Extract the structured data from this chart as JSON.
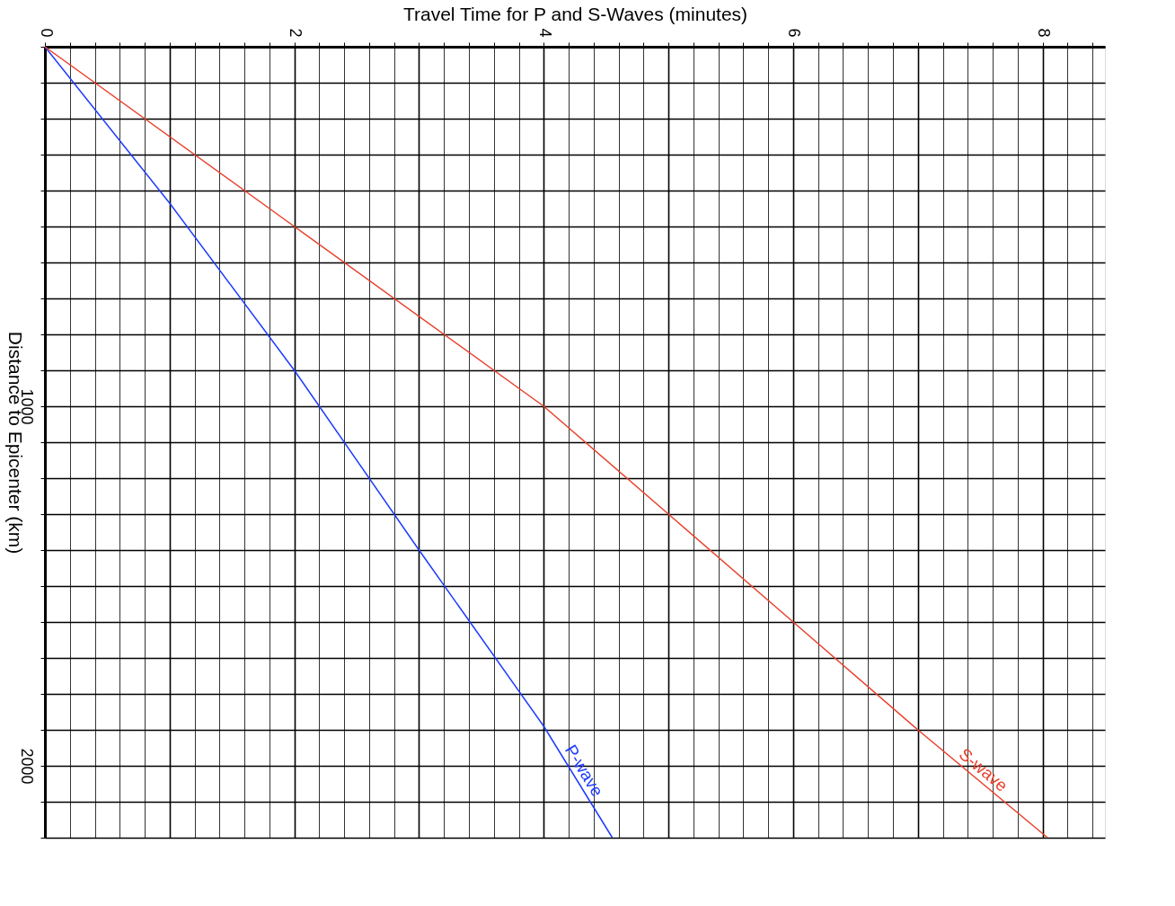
{
  "chart_data": {
    "type": "line",
    "xlabel": "Travel Time for P and S-Waves (minutes)",
    "ylabel": "Distance to Epicenter (km)",
    "xlim": [
      0,
      8.5
    ],
    "ylim": [
      2200,
      0
    ],
    "xticks": [
      0,
      {
        "value": 0.2,
        "label": null
      },
      {
        "value": 0.4,
        "label": null
      },
      {
        "value": 0.6,
        "label": null
      },
      {
        "value": 0.8,
        "label": null
      },
      {
        "value": 1,
        "label": null
      },
      {
        "value": 1.2,
        "label": null
      },
      {
        "value": 1.4,
        "label": null
      },
      {
        "value": 1.6,
        "label": null
      },
      {
        "value": 1.8,
        "label": null
      },
      2,
      {
        "value": 2.2,
        "label": null
      },
      {
        "value": 2.4,
        "label": null
      },
      {
        "value": 2.6,
        "label": null
      },
      {
        "value": 2.8,
        "label": null
      },
      {
        "value": 3,
        "label": null
      },
      {
        "value": 3.2,
        "label": null
      },
      {
        "value": 3.4,
        "label": null
      },
      {
        "value": 3.6,
        "label": null
      },
      {
        "value": 3.8,
        "label": null
      },
      4,
      {
        "value": 4.2,
        "label": null
      },
      {
        "value": 4.4,
        "label": null
      },
      {
        "value": 4.6,
        "label": null
      },
      {
        "value": 4.8,
        "label": null
      },
      {
        "value": 5,
        "label": null
      },
      {
        "value": 5.2,
        "label": null
      },
      {
        "value": 5.4,
        "label": null
      },
      {
        "value": 5.6,
        "label": null
      },
      {
        "value": 5.8,
        "label": null
      },
      6,
      {
        "value": 6.2,
        "label": null
      },
      {
        "value": 6.4,
        "label": null
      },
      {
        "value": 6.6,
        "label": null
      },
      {
        "value": 6.8,
        "label": null
      },
      {
        "value": 7,
        "label": null
      },
      {
        "value": 7.2,
        "label": null
      },
      {
        "value": 7.4,
        "label": null
      },
      {
        "value": 7.6,
        "label": null
      },
      {
        "value": 7.8,
        "label": null
      },
      8,
      {
        "value": 8.2,
        "label": null
      },
      {
        "value": 8.4,
        "label": null
      }
    ],
    "yticks": [
      {
        "value": 0,
        "label": null
      },
      {
        "value": 100,
        "label": null
      },
      {
        "value": 200,
        "label": null
      },
      {
        "value": 300,
        "label": null
      },
      {
        "value": 400,
        "label": null
      },
      {
        "value": 500,
        "label": null
      },
      {
        "value": 600,
        "label": null
      },
      {
        "value": 700,
        "label": null
      },
      {
        "value": 800,
        "label": null
      },
      {
        "value": 900,
        "label": null
      },
      1000,
      {
        "value": 1100,
        "label": null
      },
      {
        "value": 1200,
        "label": null
      },
      {
        "value": 1300,
        "label": null
      },
      {
        "value": 1400,
        "label": null
      },
      {
        "value": 1500,
        "label": null
      },
      {
        "value": 1600,
        "label": null
      },
      {
        "value": 1700,
        "label": null
      },
      {
        "value": 1800,
        "label": null
      },
      {
        "value": 1900,
        "label": null
      },
      2000,
      {
        "value": 2100,
        "label": null
      },
      {
        "value": 2200,
        "label": null
      }
    ],
    "grid": true,
    "legend": false,
    "marker": "none",
    "line_style": "solid",
    "series": [
      {
        "name": "P-wave",
        "color": "#1f3cff",
        "x": [
          0,
          1,
          2,
          3,
          4,
          4.55
        ],
        "values": [
          0,
          435,
          900,
          1400,
          1890,
          2200
        ]
      },
      {
        "name": "S-wave",
        "color": "#e8412c",
        "x": [
          0,
          2,
          4,
          5,
          6,
          7,
          8.04
        ],
        "values": [
          0,
          500,
          1000,
          1300,
          1600,
          1900,
          2200
        ]
      }
    ]
  }
}
